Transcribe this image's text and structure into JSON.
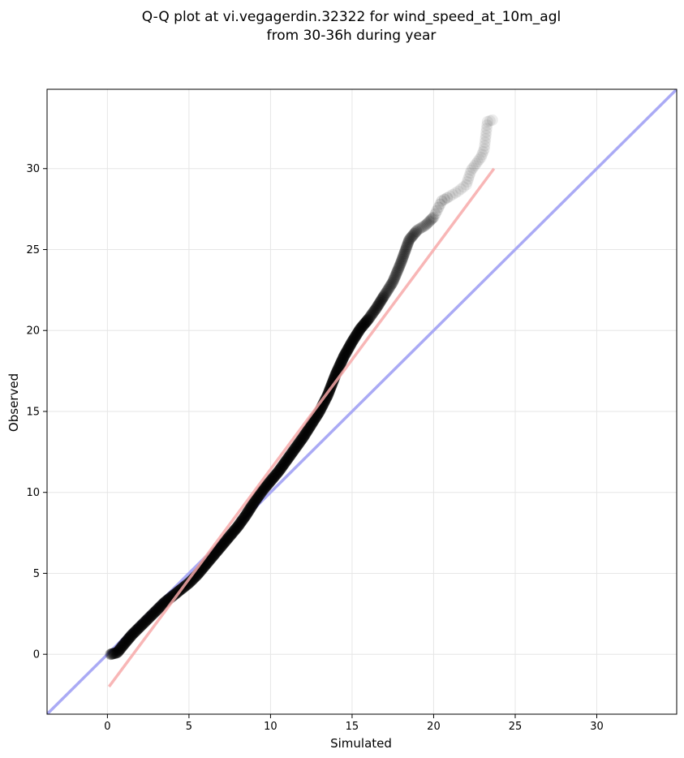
{
  "chart_data": {
    "type": "scatter",
    "title_line1": "Q-Q plot at vi.vegagerdin.32322 for wind_speed_at_10m_agl",
    "title_line2": "from 30-36h during year",
    "xlabel": "Simulated",
    "ylabel": "Observed",
    "xlim": [
      -3.7,
      34.9
    ],
    "ylim": [
      -3.7,
      34.9
    ],
    "xticks": [
      0,
      5,
      10,
      15,
      20,
      25,
      30
    ],
    "yticks": [
      0,
      5,
      10,
      15,
      20,
      25,
      30
    ],
    "grid": true,
    "identity_line_color": "#aaaaf5",
    "fit_line": {
      "color": "#f7a9a9",
      "x": [
        0.1,
        23.7
      ],
      "y": [
        -2.0,
        30.0
      ]
    },
    "point_color": "#000000",
    "quantile_curve": [
      [
        0.2,
        0.0
      ],
      [
        0.6,
        0.1
      ],
      [
        1.0,
        0.6
      ],
      [
        1.5,
        1.2
      ],
      [
        2.0,
        1.7
      ],
      [
        2.5,
        2.2
      ],
      [
        3.0,
        2.7
      ],
      [
        3.5,
        3.2
      ],
      [
        4.0,
        3.6
      ],
      [
        4.5,
        4.0
      ],
      [
        5.0,
        4.4
      ],
      [
        5.5,
        4.9
      ],
      [
        6.0,
        5.5
      ],
      [
        6.5,
        6.1
      ],
      [
        7.0,
        6.7
      ],
      [
        7.5,
        7.3
      ],
      [
        8.0,
        7.9
      ],
      [
        8.5,
        8.6
      ],
      [
        9.0,
        9.4
      ],
      [
        9.5,
        10.1
      ],
      [
        10.0,
        10.7
      ],
      [
        10.5,
        11.3
      ],
      [
        11.0,
        12.0
      ],
      [
        11.5,
        12.7
      ],
      [
        12.0,
        13.4
      ],
      [
        12.5,
        14.2
      ],
      [
        13.0,
        15.0
      ],
      [
        13.5,
        16.0
      ],
      [
        14.0,
        17.3
      ],
      [
        14.5,
        18.4
      ],
      [
        15.0,
        19.3
      ],
      [
        15.5,
        20.1
      ],
      [
        16.0,
        20.7
      ],
      [
        16.5,
        21.4
      ],
      [
        17.0,
        22.2
      ],
      [
        17.5,
        23.0
      ],
      [
        18.0,
        24.2
      ],
      [
        18.5,
        25.6
      ],
      [
        19.0,
        26.2
      ],
      [
        19.5,
        26.5
      ],
      [
        20.0,
        27.0
      ],
      [
        20.5,
        28.0
      ],
      [
        21.0,
        28.3
      ],
      [
        21.5,
        28.6
      ],
      [
        22.0,
        29.0
      ],
      [
        22.3,
        29.9
      ],
      [
        22.6,
        30.3
      ],
      [
        22.9,
        30.7
      ],
      [
        23.1,
        31.2
      ],
      [
        23.3,
        32.9
      ],
      [
        23.6,
        33.0
      ]
    ]
  }
}
